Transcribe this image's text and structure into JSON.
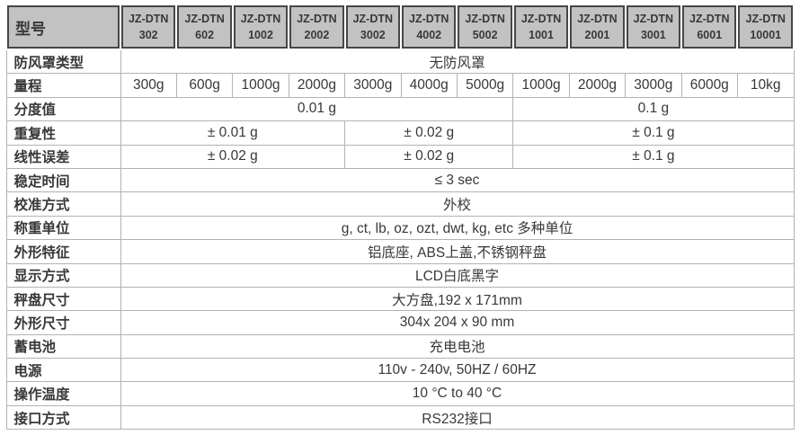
{
  "table": {
    "colors": {
      "header_bg": "#c2c2c2",
      "header_border": "#474747",
      "body_border": "#b3b3b3",
      "text": "#383838"
    },
    "header": {
      "label": "型号",
      "brand": "JZ-DTN",
      "models": [
        "302",
        "602",
        "1002",
        "2002",
        "3002",
        "4002",
        "5002",
        "1001",
        "2001",
        "3001",
        "6001",
        "10001"
      ]
    },
    "rows": [
      {
        "label": "防风罩类型",
        "cells": [
          {
            "span": 12,
            "text": "无防风罩"
          }
        ]
      },
      {
        "label": "量程",
        "cells": [
          {
            "span": 1,
            "text": "300g"
          },
          {
            "span": 1,
            "text": "600g"
          },
          {
            "span": 1,
            "text": "1000g"
          },
          {
            "span": 1,
            "text": "2000g"
          },
          {
            "span": 1,
            "text": "3000g"
          },
          {
            "span": 1,
            "text": "4000g"
          },
          {
            "span": 1,
            "text": "5000g"
          },
          {
            "span": 1,
            "text": "1000g"
          },
          {
            "span": 1,
            "text": "2000g"
          },
          {
            "span": 1,
            "text": "3000g"
          },
          {
            "span": 1,
            "text": "6000g"
          },
          {
            "span": 1,
            "text": "10kg"
          }
        ]
      },
      {
        "label": "分度值",
        "cells": [
          {
            "span": 7,
            "text": "0.01 g"
          },
          {
            "span": 5,
            "text": "0.1 g"
          }
        ]
      },
      {
        "label": "重复性",
        "cells": [
          {
            "span": 4,
            "text": "± 0.01 g"
          },
          {
            "span": 3,
            "text": "± 0.02 g"
          },
          {
            "span": 5,
            "text": "± 0.1 g"
          }
        ]
      },
      {
        "label": "线性误差",
        "cells": [
          {
            "span": 4,
            "text": "± 0.02 g"
          },
          {
            "span": 3,
            "text": "± 0.02 g"
          },
          {
            "span": 5,
            "text": "± 0.1 g"
          }
        ]
      },
      {
        "label": "稳定时间",
        "cells": [
          {
            "span": 12,
            "text": "≤ 3 sec"
          }
        ]
      },
      {
        "label": "校准方式",
        "cells": [
          {
            "span": 12,
            "text": "外校"
          }
        ]
      },
      {
        "label": "称重单位",
        "cells": [
          {
            "span": 12,
            "text": "g, ct, lb, oz, ozt, dwt, kg, etc 多种单位"
          }
        ]
      },
      {
        "label": "外形特征",
        "cells": [
          {
            "span": 12,
            "text": "铝底座, ABS上盖,不锈钢秤盘"
          }
        ]
      },
      {
        "label": "显示方式",
        "cells": [
          {
            "span": 12,
            "text": "LCD白底黑字"
          }
        ]
      },
      {
        "label": "秤盘尺寸",
        "cells": [
          {
            "span": 12,
            "text": "大方盘,192 x 171mm"
          }
        ]
      },
      {
        "label": "外形尺寸",
        "cells": [
          {
            "span": 12,
            "text": "304x 204 x 90 mm"
          }
        ]
      },
      {
        "label": "蓄电池",
        "cells": [
          {
            "span": 12,
            "text": "充电电池"
          }
        ]
      },
      {
        "label": "电源",
        "cells": [
          {
            "span": 12,
            "text": "110v - 240v, 50HZ / 60HZ"
          }
        ]
      },
      {
        "label": "操作温度",
        "cells": [
          {
            "span": 12,
            "text": "10 °C to 40 °C"
          }
        ]
      },
      {
        "label": "接口方式",
        "cells": [
          {
            "span": 12,
            "text": "RS232接口"
          }
        ]
      }
    ]
  }
}
